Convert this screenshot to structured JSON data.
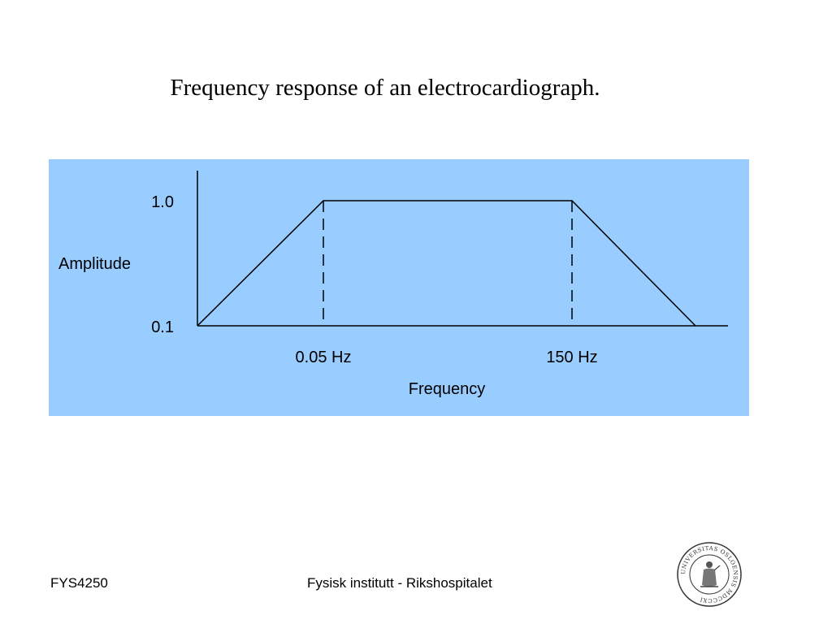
{
  "slide": {
    "title": "Frequency response of an electrocardiograph."
  },
  "footer": {
    "course_code": "FYS4250",
    "institution": "Fysisk institutt - Rikshospitalet"
  },
  "seal": {
    "inscription": "UNIVERSITAS OSLOENSIS MDCCCXI"
  },
  "colors": {
    "panel": "#99ccff",
    "line": "#000000"
  },
  "chart_data": {
    "type": "line",
    "title": "",
    "xlabel": "Frequency",
    "ylabel": "Amplitude",
    "xscale": "schematic",
    "x_ticks": [
      "0.05 Hz",
      "150 Hz"
    ],
    "y_ticks": [
      "0.1",
      "1.0"
    ],
    "series": [
      {
        "points": [
          {
            "x": "",
            "y": 0.1
          },
          {
            "x": "0.05 Hz",
            "y": 1.0
          },
          {
            "x": "150 Hz",
            "y": 1.0
          },
          {
            "x": "",
            "y": 0.1
          }
        ]
      }
    ],
    "cutoff_markers": [
      "0.05 Hz",
      "150 Hz"
    ],
    "grid": false,
    "legend": "none"
  }
}
